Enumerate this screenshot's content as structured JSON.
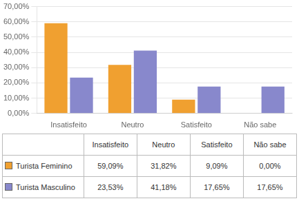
{
  "chart_data": {
    "type": "bar",
    "categories": [
      "Insatisfeito",
      "Neutro",
      "Satisfeito",
      "Não sabe"
    ],
    "series": [
      {
        "name": "Turista Feminino",
        "color": "#F0A030",
        "values": [
          59.09,
          31.82,
          9.09,
          0.0
        ],
        "value_labels": [
          "59,09%",
          "31,82%",
          "9,09%",
          "0,00%"
        ]
      },
      {
        "name": "Turista Masculino",
        "color": "#8888CC",
        "values": [
          23.53,
          41.18,
          17.65,
          17.65
        ],
        "value_labels": [
          "23,53%",
          "41,18%",
          "17,65%",
          "17,65%"
        ]
      }
    ],
    "ylim": [
      0,
      70
    ],
    "yticks": [
      {
        "value": 0,
        "label": "0,00%"
      },
      {
        "value": 10,
        "label": "10,00%"
      },
      {
        "value": 20,
        "label": "20,00%"
      },
      {
        "value": 30,
        "label": "30,00%"
      },
      {
        "value": 40,
        "label": "40,00%"
      },
      {
        "value": 50,
        "label": "50,00%"
      },
      {
        "value": 60,
        "label": "60,00%"
      },
      {
        "value": 70,
        "label": "70,00%"
      }
    ],
    "grid": true
  }
}
